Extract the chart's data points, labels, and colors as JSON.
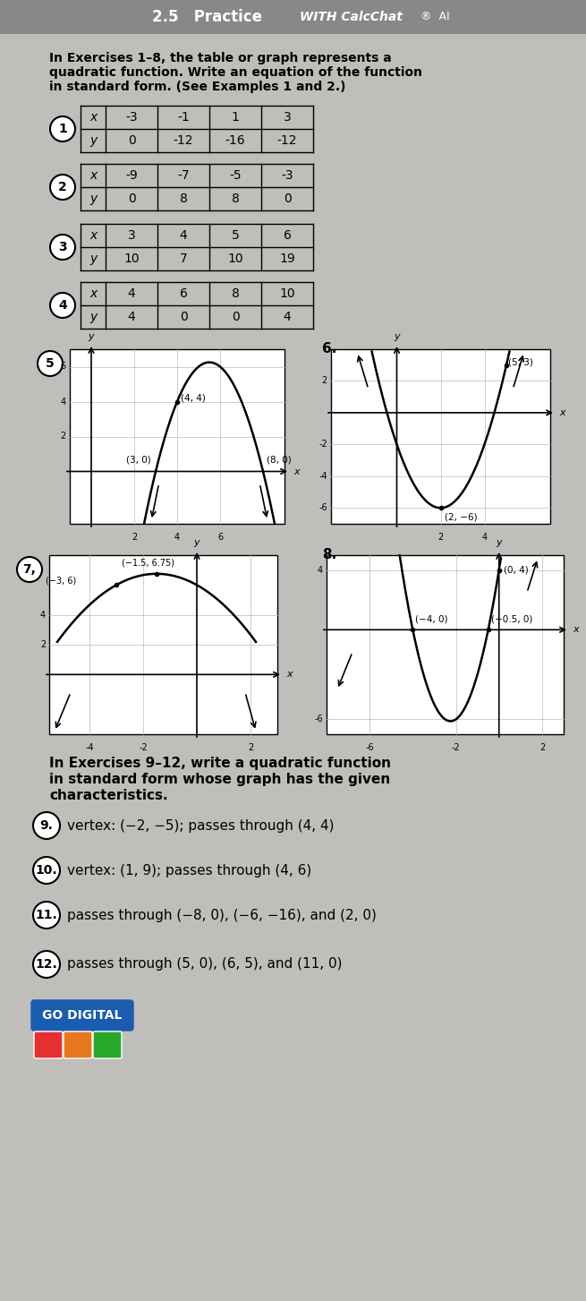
{
  "instruction1_line1": "In Exercises 1–8, the table or graph represents a",
  "instruction1_line2": "quadratic function. Write an equation of the function",
  "instruction1_line3": "in standard form. (See Examples 1 and 2.)",
  "instruction2_line1": "In Exercises 9–12, write a quadratic function",
  "instruction2_line2": "in standard form whose graph has the given",
  "instruction2_line3": "characteristics.",
  "table1": {
    "num": "1",
    "x": [
      "-3",
      "-1",
      "1",
      "3"
    ],
    "y": [
      "0",
      "-12",
      "-16",
      "-12"
    ]
  },
  "table2": {
    "num": "2",
    "x": [
      "-9",
      "-7",
      "-5",
      "-3"
    ],
    "y": [
      "0",
      "8",
      "8",
      "0"
    ]
  },
  "table3": {
    "num": "3",
    "x": [
      "3",
      "4",
      "5",
      "6"
    ],
    "y": [
      "10",
      "7",
      "10",
      "19"
    ]
  },
  "table4": {
    "num": "4",
    "x": [
      "4",
      "6",
      "8",
      "10"
    ],
    "y": [
      "4",
      "0",
      "0",
      "4"
    ]
  },
  "exercises": [
    {
      "num": "9.",
      "text": "vertex: (−2, −5); passes through (4, 4)"
    },
    {
      "num": "10.",
      "text": "vertex: (1, 9); passes through (4, 6)"
    },
    {
      "num": "11.",
      "text": "passes through (−8, 0), (−6, −16), and (2, 0)"
    },
    {
      "num": "12.",
      "text": "passes through (5, 0), (6, 5), and (11, 0)"
    }
  ],
  "go_digital": "GO DIGITAL",
  "bg_color": "#c0bebb",
  "header_color": "#888888"
}
